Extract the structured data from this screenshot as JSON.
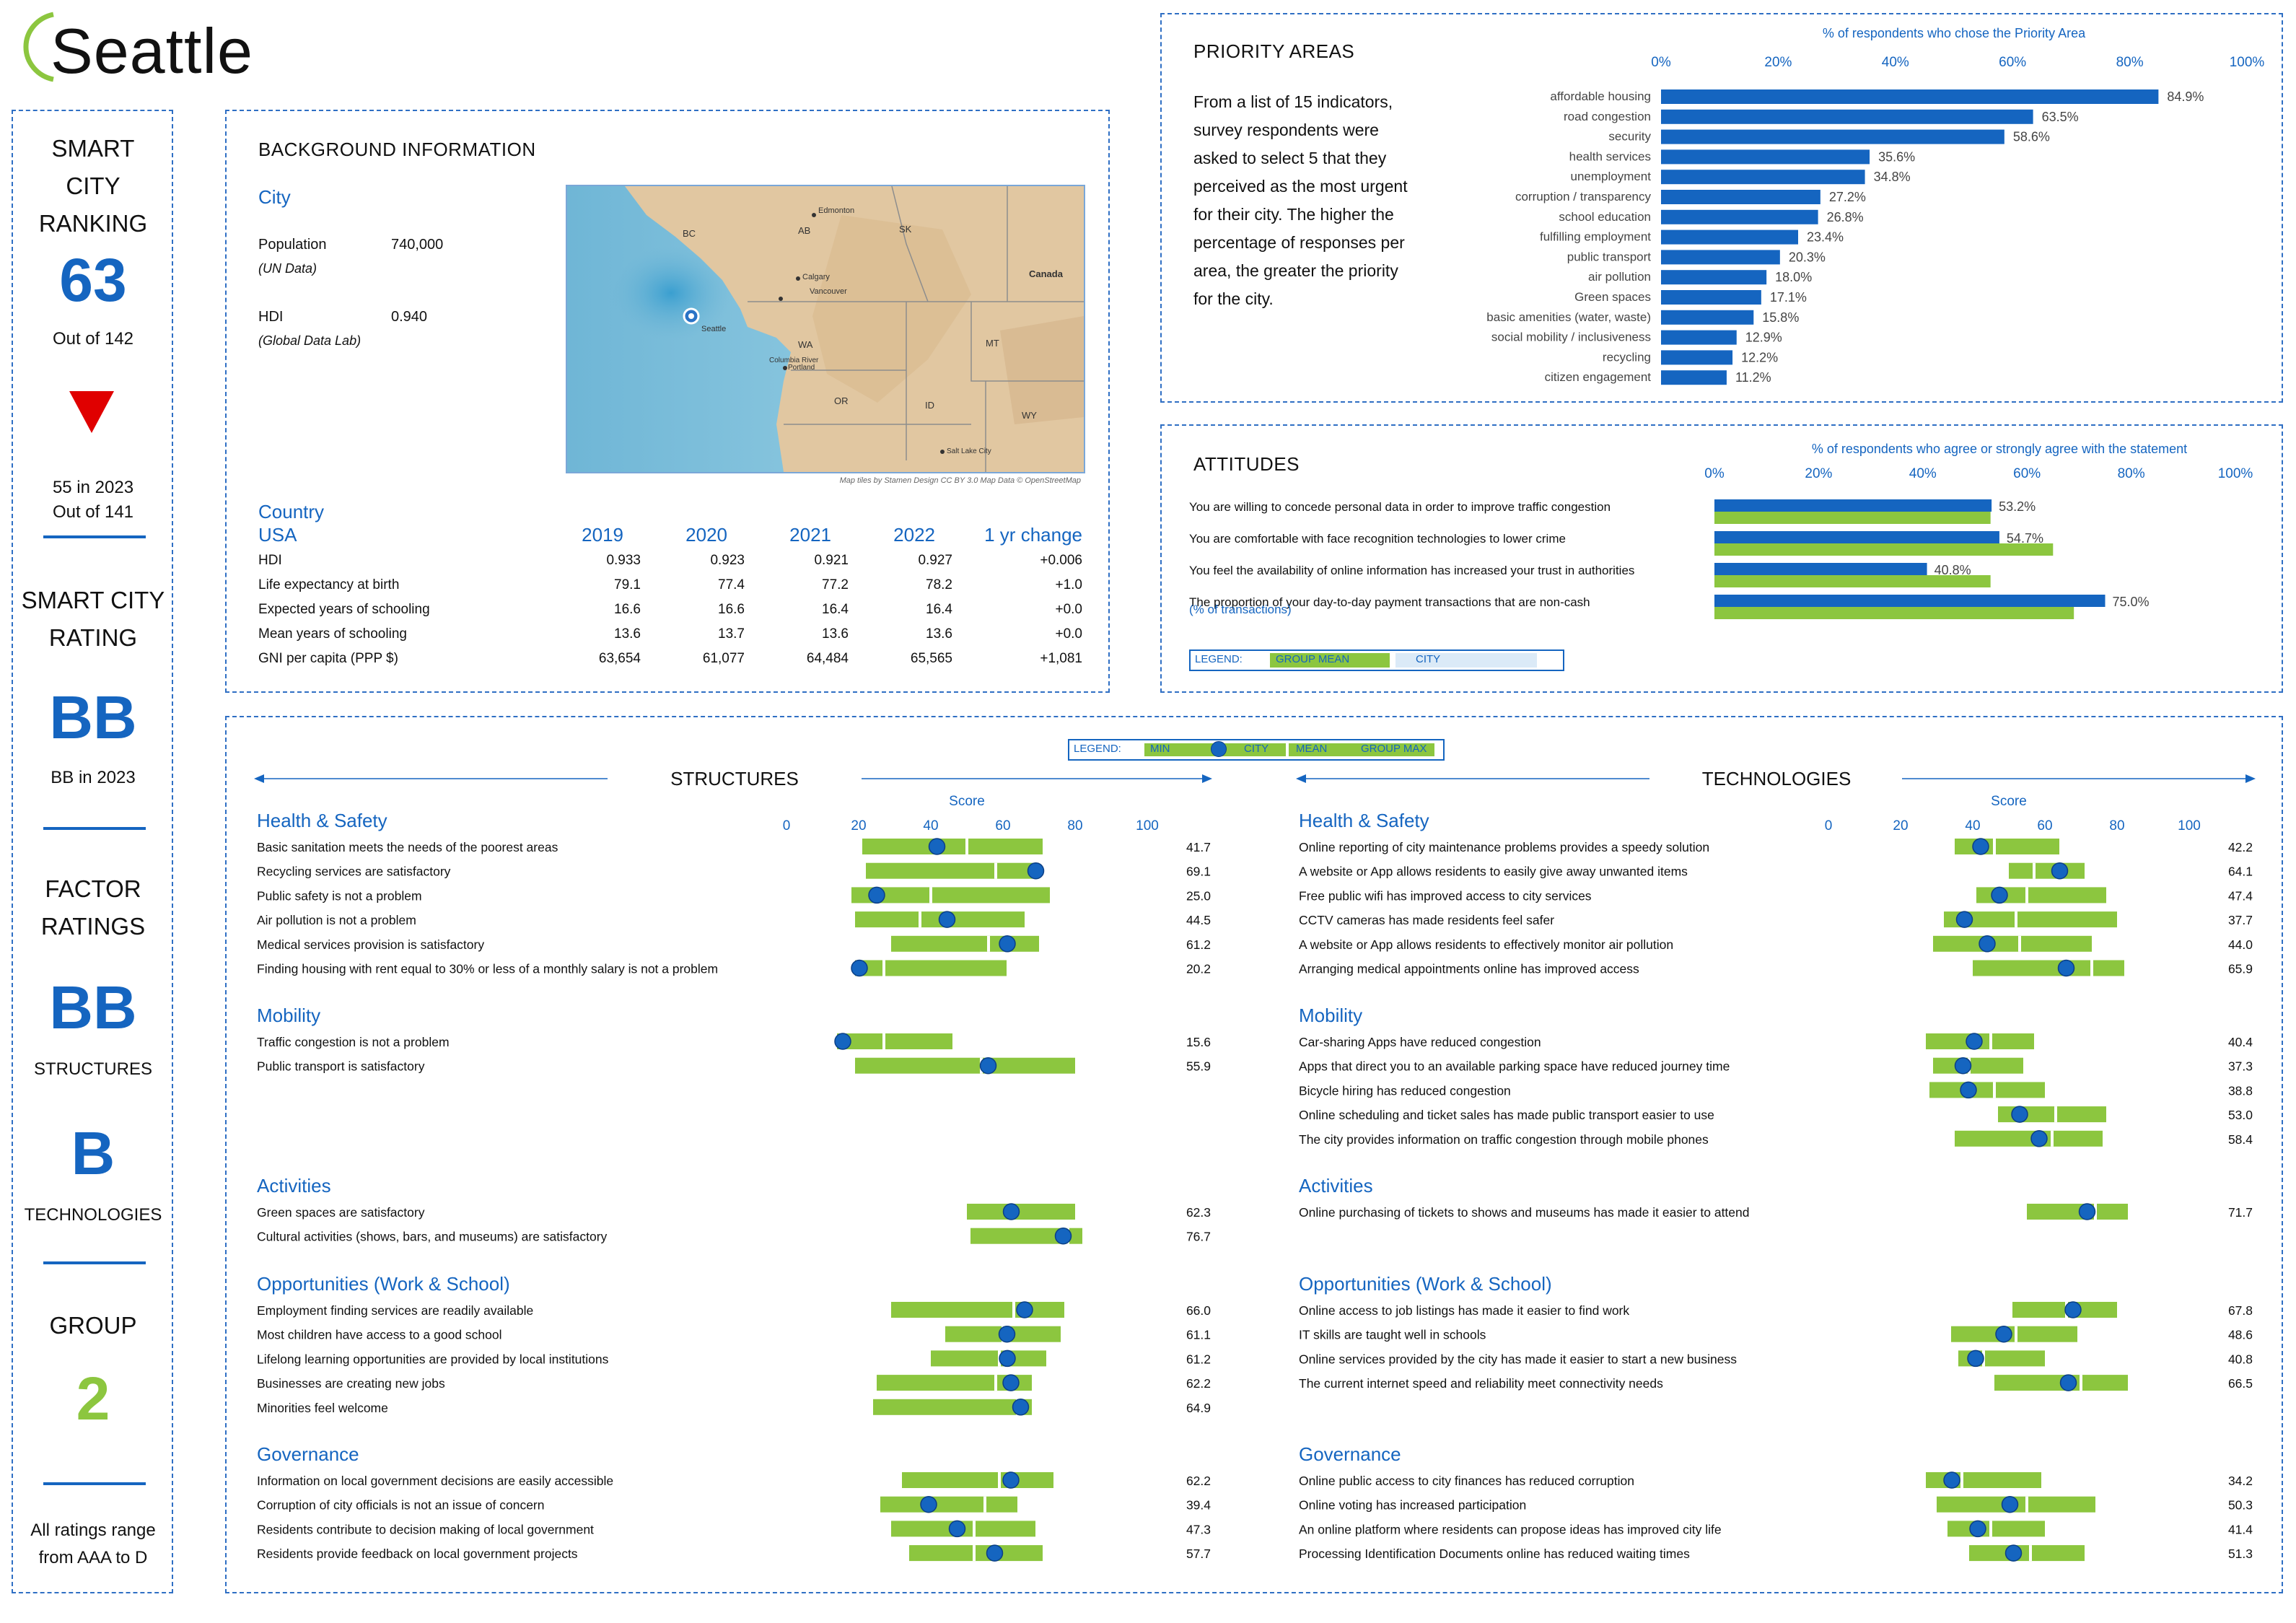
{
  "city_name": "Seattle",
  "colors": {
    "blue": "#1565c0",
    "green": "#8cc63f",
    "red": "#e00000",
    "dash": "#2f6fc4"
  },
  "left_panel": {
    "ranking_title": "SMART CITY RANKING",
    "rank": "63",
    "rank_out_of": "Out of 142",
    "trend_icon": "down-triangle-icon",
    "prev_rank": "55 in 2023",
    "prev_out_of": "Out of 141",
    "rating_title": "SMART CITY RATING",
    "rating": "BB",
    "prev_rating": "BB in 2023",
    "factor_title": "FACTOR RATINGS",
    "structures_rating": "BB",
    "structures_label": "STRUCTURES",
    "technologies_rating": "B",
    "technologies_label": "TECHNOLOGIES",
    "group_title": "GROUP",
    "group": "2",
    "footnote": "All ratings range from AAA to D"
  },
  "background": {
    "title": "BACKGROUND INFORMATION",
    "city_label": "City",
    "population_label": "Population",
    "population_source": "(UN Data)",
    "population_value": "740,000",
    "hdi_label": "HDI",
    "hdi_source": "(Global Data Lab)",
    "hdi_value": "0.940",
    "map": {
      "credit": "Map tiles by Stamen Design CC BY 3.0 Map Data © OpenStreetMap",
      "labels": [
        "Edmonton",
        "AB",
        "SK",
        "BC",
        "Calgary",
        "Canada",
        "Vancouver",
        "Seattle",
        "WA",
        "MT",
        "Columbia River",
        "Portland",
        "OR",
        "ID",
        "WY",
        "Salt Lake City"
      ]
    },
    "country_label": "Country",
    "country_name": "USA",
    "years": [
      "2019",
      "2020",
      "2021",
      "2022",
      "1 yr change"
    ],
    "rows": [
      {
        "label": "HDI",
        "values": [
          "0.933",
          "0.923",
          "0.921",
          "0.927",
          "+0.006"
        ]
      },
      {
        "label": "Life expectancy at birth",
        "values": [
          "79.1",
          "77.4",
          "77.2",
          "78.2",
          "+1.0"
        ]
      },
      {
        "label": "Expected years of schooling",
        "values": [
          "16.6",
          "16.6",
          "16.4",
          "16.4",
          "+0.0"
        ]
      },
      {
        "label": "Mean years of schooling",
        "values": [
          "13.6",
          "13.7",
          "13.6",
          "13.6",
          "+0.0"
        ]
      },
      {
        "label": "GNI per capita (PPP $)",
        "values": [
          "63,654",
          "61,077",
          "64,484",
          "65,565",
          "+1,081"
        ]
      }
    ]
  },
  "priority": {
    "title": "PRIORITY AREAS",
    "description": "From a list of 15 indicators, survey respondents were asked to select 5 that they perceived as the most urgent for their city. The higher the percentage of responses per area, the greater the priority for the city.",
    "axis_title": "% of respondents who chose the Priority Area",
    "ticks": [
      "0%",
      "20%",
      "40%",
      "60%",
      "80%",
      "100%"
    ]
  },
  "attitudes": {
    "title": "ATTITUDES",
    "axis_title": "% of respondents who agree or strongly agree with the statement",
    "ticks": [
      "0%",
      "20%",
      "40%",
      "60%",
      "80%",
      "100%"
    ],
    "sub_label": "(% of transactions)",
    "legend_label": "LEGEND:",
    "legend_group": "GROUP MEAN",
    "legend_city": "CITY"
  },
  "scores": {
    "legend_label": "LEGEND:",
    "legend_items": [
      "MIN",
      "CITY",
      "MEAN",
      "GROUP MAX"
    ],
    "structures_title": "STRUCTURES",
    "technologies_title": "TECHNOLOGIES",
    "score_label": "Score",
    "ticks": [
      "0",
      "20",
      "40",
      "60",
      "80",
      "100"
    ]
  },
  "chart_data": [
    {
      "type": "bar",
      "title": "PRIORITY AREAS",
      "xlabel": "% of respondents who chose the Priority Area",
      "xlim": [
        0,
        100
      ],
      "categories": [
        "affordable housing",
        "road congestion",
        "security",
        "health services",
        "unemployment",
        "corruption / transparency",
        "school education",
        "fulfilling employment",
        "public transport",
        "air pollution",
        "Green spaces",
        "basic amenities (water, waste)",
        "social mobility / inclusiveness",
        "recycling",
        "citizen engagement"
      ],
      "values": [
        84.9,
        63.5,
        58.6,
        35.6,
        34.8,
        27.2,
        26.8,
        23.4,
        20.3,
        18.0,
        17.1,
        15.8,
        12.9,
        12.2,
        11.2
      ],
      "labels": [
        "84.9%",
        "63.5%",
        "58.6%",
        "35.6%",
        "34.8%",
        "27.2%",
        "26.8%",
        "23.4%",
        "20.3%",
        "18.0%",
        "17.1%",
        "15.8%",
        "12.9%",
        "12.2%",
        "11.2%"
      ]
    },
    {
      "type": "bar",
      "title": "ATTITUDES",
      "xlabel": "% of respondents who agree or strongly agree with the statement",
      "xlim": [
        0,
        100
      ],
      "categories": [
        "You are willing to concede personal data in order to improve traffic congestion",
        "You are comfortable with face recognition technologies to lower crime",
        "You feel the availability of online information has increased your trust in authorities",
        "The proportion of your day-to-day payment transactions that are non-cash"
      ],
      "series": [
        {
          "name": "CITY",
          "values": [
            53.2,
            54.7,
            40.8,
            75.0
          ],
          "labels": [
            "53.2%",
            "54.7%",
            "40.8%",
            "75.0%"
          ]
        },
        {
          "name": "GROUP MEAN",
          "values": [
            53,
            65,
            53,
            69
          ]
        }
      ]
    },
    {
      "type": "range-dot",
      "title": "STRUCTURES",
      "xlabel": "Score",
      "xlim": [
        0,
        100
      ],
      "groups": [
        {
          "name": "Health & Safety",
          "items": [
            {
              "label": "Basic sanitation meets the needs of the poorest areas",
              "min": 21,
              "mean": 50,
              "max": 71,
              "city": 41.7,
              "value_label": "41.7"
            },
            {
              "label": "Recycling services are satisfactory",
              "min": 22,
              "mean": 58,
              "max": 70,
              "city": 69.1,
              "value_label": "69.1"
            },
            {
              "label": "Public safety is not a problem",
              "min": 18,
              "mean": 40,
              "max": 73,
              "city": 25.0,
              "value_label": "25.0"
            },
            {
              "label": "Air pollution is not a problem",
              "min": 19,
              "mean": 37,
              "max": 66,
              "city": 44.5,
              "value_label": "44.5"
            },
            {
              "label": "Medical services provision is satisfactory",
              "min": 29,
              "mean": 56,
              "max": 70,
              "city": 61.2,
              "value_label": "61.2"
            },
            {
              "label": "Finding housing with rent equal to 30% or less of a monthly salary is not a problem",
              "min": 19,
              "mean": 27,
              "max": 61,
              "city": 20.2,
              "value_label": "20.2"
            }
          ]
        },
        {
          "name": "Mobility",
          "items": [
            {
              "label": "Traffic congestion is not a problem",
              "min": 14,
              "mean": 27,
              "max": 46,
              "city": 15.6,
              "value_label": "15.6"
            },
            {
              "label": "Public transport is satisfactory",
              "min": 19,
              "mean": 54,
              "max": 80,
              "city": 55.9,
              "value_label": "55.9"
            }
          ]
        },
        {
          "name": "Activities",
          "items": [
            {
              "label": "Green spaces are satisfactory",
              "min": 50,
              "mean": 62,
              "max": 80,
              "city": 62.3,
              "value_label": "62.3"
            },
            {
              "label": "Cultural activities (shows, bars, and museums) are satisfactory",
              "min": 51,
              "mean": 78,
              "max": 82,
              "city": 76.7,
              "value_label": "76.7"
            }
          ]
        },
        {
          "name": "Opportunities (Work & School)",
          "items": [
            {
              "label": "Employment finding services are readily available",
              "min": 29,
              "mean": 63,
              "max": 77,
              "city": 66.0,
              "value_label": "66.0"
            },
            {
              "label": "Most children have access to a good school",
              "min": 44,
              "mean": 60,
              "max": 76,
              "city": 61.1,
              "value_label": "61.1"
            },
            {
              "label": "Lifelong learning opportunities are provided by local institutions",
              "min": 40,
              "mean": 59,
              "max": 72,
              "city": 61.2,
              "value_label": "61.2"
            },
            {
              "label": "Businesses are creating new jobs",
              "min": 25,
              "mean": 58,
              "max": 68,
              "city": 62.2,
              "value_label": "62.2"
            },
            {
              "label": "Minorities feel welcome",
              "min": 24,
              "mean": 64,
              "max": 68,
              "city": 64.9,
              "value_label": "64.9"
            }
          ]
        },
        {
          "name": "Governance",
          "items": [
            {
              "label": "Information on local government decisions are easily accessible",
              "min": 32,
              "mean": 59,
              "max": 74,
              "city": 62.2,
              "value_label": "62.2"
            },
            {
              "label": "Corruption of city officials is not an issue of concern",
              "min": 26,
              "mean": 55,
              "max": 64,
              "city": 39.4,
              "value_label": "39.4"
            },
            {
              "label": "Residents contribute to decision making of local government",
              "min": 29,
              "mean": 52,
              "max": 69,
              "city": 47.3,
              "value_label": "47.3"
            },
            {
              "label": "Residents provide feedback on local government projects",
              "min": 34,
              "mean": 52,
              "max": 71,
              "city": 57.7,
              "value_label": "57.7"
            }
          ]
        }
      ]
    },
    {
      "type": "range-dot",
      "title": "TECHNOLOGIES",
      "xlabel": "Score",
      "xlim": [
        0,
        100
      ],
      "groups": [
        {
          "name": "Health & Safety",
          "items": [
            {
              "label": "Online reporting of city maintenance problems provides a speedy solution",
              "min": 35,
              "mean": 46,
              "max": 64,
              "city": 42.2,
              "value_label": "42.2"
            },
            {
              "label": "A website or App allows residents to easily give away unwanted items",
              "min": 50,
              "mean": 57,
              "max": 71,
              "city": 64.1,
              "value_label": "64.1"
            },
            {
              "label": "Free public wifi has improved access to city services",
              "min": 41,
              "mean": 55,
              "max": 77,
              "city": 47.4,
              "value_label": "47.4"
            },
            {
              "label": "CCTV cameras has made residents feel safer",
              "min": 32,
              "mean": 52,
              "max": 80,
              "city": 37.7,
              "value_label": "37.7"
            },
            {
              "label": "A website or App allows residents to effectively monitor air pollution",
              "min": 29,
              "mean": 53,
              "max": 73,
              "city": 44.0,
              "value_label": "44.0"
            },
            {
              "label": "Arranging medical appointments online has improved access",
              "min": 40,
              "mean": 73,
              "max": 82,
              "city": 65.9,
              "value_label": "65.9"
            }
          ]
        },
        {
          "name": "Mobility",
          "items": [
            {
              "label": "Car-sharing Apps have reduced congestion",
              "min": 27,
              "mean": 45,
              "max": 57,
              "city": 40.4,
              "value_label": "40.4"
            },
            {
              "label": "Apps that direct you to an available parking space have reduced journey time",
              "min": 29,
              "mean": 39,
              "max": 54,
              "city": 37.3,
              "value_label": "37.3"
            },
            {
              "label": "Bicycle hiring has reduced congestion",
              "min": 28,
              "mean": 46,
              "max": 60,
              "city": 38.8,
              "value_label": "38.8"
            },
            {
              "label": "Online scheduling and ticket sales has made public transport easier to use",
              "min": 47,
              "mean": 63,
              "max": 77,
              "city": 53.0,
              "value_label": "53.0"
            },
            {
              "label": "The city provides information on traffic congestion through mobile phones",
              "min": 35,
              "mean": 62,
              "max": 76,
              "city": 58.4,
              "value_label": "58.4"
            }
          ]
        },
        {
          "name": "Activities",
          "items": [
            {
              "label": "Online purchasing of tickets to shows and museums has made it easier to attend",
              "min": 55,
              "mean": 74,
              "max": 83,
              "city": 71.7,
              "value_label": "71.7"
            }
          ]
        },
        {
          "name": "Opportunities (Work & School)",
          "items": [
            {
              "label": "Online access to job listings has made it easier to find work",
              "min": 51,
              "mean": 66,
              "max": 80,
              "city": 67.8,
              "value_label": "67.8"
            },
            {
              "label": "IT skills are taught well in schools",
              "min": 34,
              "mean": 52,
              "max": 69,
              "city": 48.6,
              "value_label": "48.6"
            },
            {
              "label": "Online services provided by the city has made it easier to start a new business",
              "min": 36,
              "mean": 43,
              "max": 60,
              "city": 40.8,
              "value_label": "40.8"
            },
            {
              "label": "The current internet speed and reliability meet connectivity needs",
              "min": 46,
              "mean": 70,
              "max": 83,
              "city": 66.5,
              "value_label": "66.5"
            }
          ]
        },
        {
          "name": "Governance",
          "items": [
            {
              "label": "Online public access to city finances has reduced corruption",
              "min": 27,
              "mean": 37,
              "max": 59,
              "city": 34.2,
              "value_label": "34.2"
            },
            {
              "label": "Online voting has increased participation",
              "min": 30,
              "mean": 55,
              "max": 74,
              "city": 50.3,
              "value_label": "50.3"
            },
            {
              "label": "An online platform where residents can propose ideas has improved city life",
              "min": 33,
              "mean": 45,
              "max": 60,
              "city": 41.4,
              "value_label": "41.4"
            },
            {
              "label": "Processing Identification Documents online has reduced waiting times",
              "min": 39,
              "mean": 56,
              "max": 71,
              "city": 51.3,
              "value_label": "51.3"
            }
          ]
        }
      ]
    }
  ]
}
